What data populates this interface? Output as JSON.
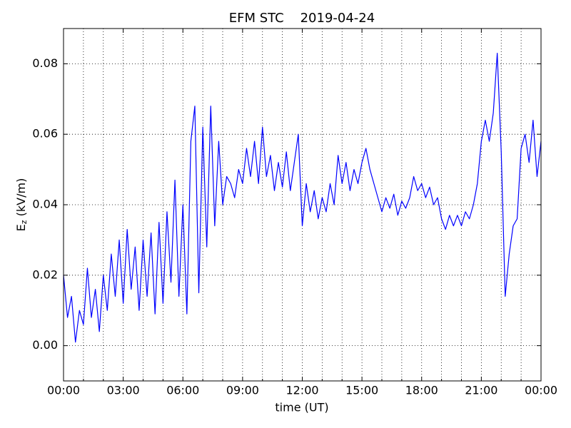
{
  "chart_data": {
    "type": "line",
    "title": "EFM STC    2019-04-24",
    "x_label": "time (UT)",
    "y_label": {
      "main": "E",
      "sub": "z",
      "rest": " (kV/m)"
    },
    "xlim": [
      0,
      24
    ],
    "xticks": [
      {
        "value": 0,
        "label": "00:00"
      },
      {
        "value": 3,
        "label": "03:00"
      },
      {
        "value": 6,
        "label": "06:00"
      },
      {
        "value": 9,
        "label": "09:00"
      },
      {
        "value": 12,
        "label": "12:00"
      },
      {
        "value": 15,
        "label": "15:00"
      },
      {
        "value": 18,
        "label": "18:00"
      },
      {
        "value": 21,
        "label": "21:00"
      },
      {
        "value": 24,
        "label": "00:00"
      }
    ],
    "xminorticks": [
      1,
      2,
      4,
      5,
      7,
      8,
      10,
      11,
      13,
      14,
      16,
      17,
      19,
      20,
      22,
      23
    ],
    "ylim": [
      -0.01,
      0.09
    ],
    "yticks": [
      {
        "value": 0,
        "label": "0.00"
      },
      0.02,
      0.04,
      0.06,
      0.08
    ],
    "grid": true,
    "x": [
      0,
      0.2,
      0.4,
      0.6,
      0.8,
      1,
      1.2,
      1.4,
      1.6,
      1.8,
      2,
      2.2,
      2.4,
      2.6,
      2.8,
      3,
      3.2,
      3.4,
      3.6,
      3.8,
      4,
      4.2,
      4.4,
      4.6,
      4.8,
      5,
      5.2,
      5.4,
      5.6,
      5.8,
      6,
      6.2,
      6.4,
      6.6,
      6.8,
      7,
      7.2,
      7.4,
      7.6,
      7.8,
      8,
      8.2,
      8.4,
      8.6,
      8.8,
      9,
      9.2,
      9.4,
      9.6,
      9.8,
      10,
      10.2,
      10.4,
      10.6,
      10.8,
      11,
      11.2,
      11.4,
      11.6,
      11.8,
      12,
      12.2,
      12.4,
      12.6,
      12.8,
      13,
      13.2,
      13.4,
      13.6,
      13.8,
      14,
      14.2,
      14.4,
      14.6,
      14.8,
      15,
      15.2,
      15.4,
      15.6,
      15.8,
      16,
      16.2,
      16.4,
      16.6,
      16.8,
      17,
      17.2,
      17.4,
      17.6,
      17.8,
      18,
      18.2,
      18.4,
      18.6,
      18.8,
      19,
      19.2,
      19.4,
      19.6,
      19.8,
      20,
      20.2,
      20.4,
      20.6,
      20.8,
      21,
      21.2,
      21.4,
      21.6,
      21.8,
      22,
      22.2,
      22.4,
      22.6,
      22.8,
      23,
      23.2,
      23.4,
      23.6,
      23.8,
      24
    ],
    "series": [
      {
        "color": "#0000ff",
        "values": [
          0.02,
          0.008,
          0.014,
          0.001,
          0.01,
          0.006,
          0.022,
          0.008,
          0.016,
          0.004,
          0.02,
          0.01,
          0.026,
          0.014,
          0.03,
          0.012,
          0.033,
          0.016,
          0.028,
          0.01,
          0.03,
          0.014,
          0.032,
          0.009,
          0.035,
          0.012,
          0.038,
          0.018,
          0.047,
          0.014,
          0.04,
          0.009,
          0.058,
          0.068,
          0.015,
          0.062,
          0.028,
          0.068,
          0.034,
          0.058,
          0.04,
          0.048,
          0.046,
          0.042,
          0.05,
          0.046,
          0.056,
          0.048,
          0.058,
          0.046,
          0.062,
          0.048,
          0.054,
          0.044,
          0.052,
          0.045,
          0.055,
          0.044,
          0.052,
          0.06,
          0.034,
          0.046,
          0.038,
          0.044,
          0.036,
          0.042,
          0.038,
          0.046,
          0.04,
          0.054,
          0.046,
          0.052,
          0.044,
          0.05,
          0.046,
          0.052,
          0.056,
          0.05,
          0.046,
          0.042,
          0.038,
          0.042,
          0.039,
          0.043,
          0.037,
          0.041,
          0.039,
          0.042,
          0.048,
          0.044,
          0.046,
          0.042,
          0.045,
          0.04,
          0.042,
          0.036,
          0.033,
          0.037,
          0.034,
          0.037,
          0.034,
          0.038,
          0.036,
          0.04,
          0.046,
          0.058,
          0.064,
          0.058,
          0.066,
          0.083,
          0.055,
          0.014,
          0.026,
          0.034,
          0.036,
          0.056,
          0.06,
          0.052,
          0.064,
          0.048,
          0.058
        ]
      }
    ]
  }
}
